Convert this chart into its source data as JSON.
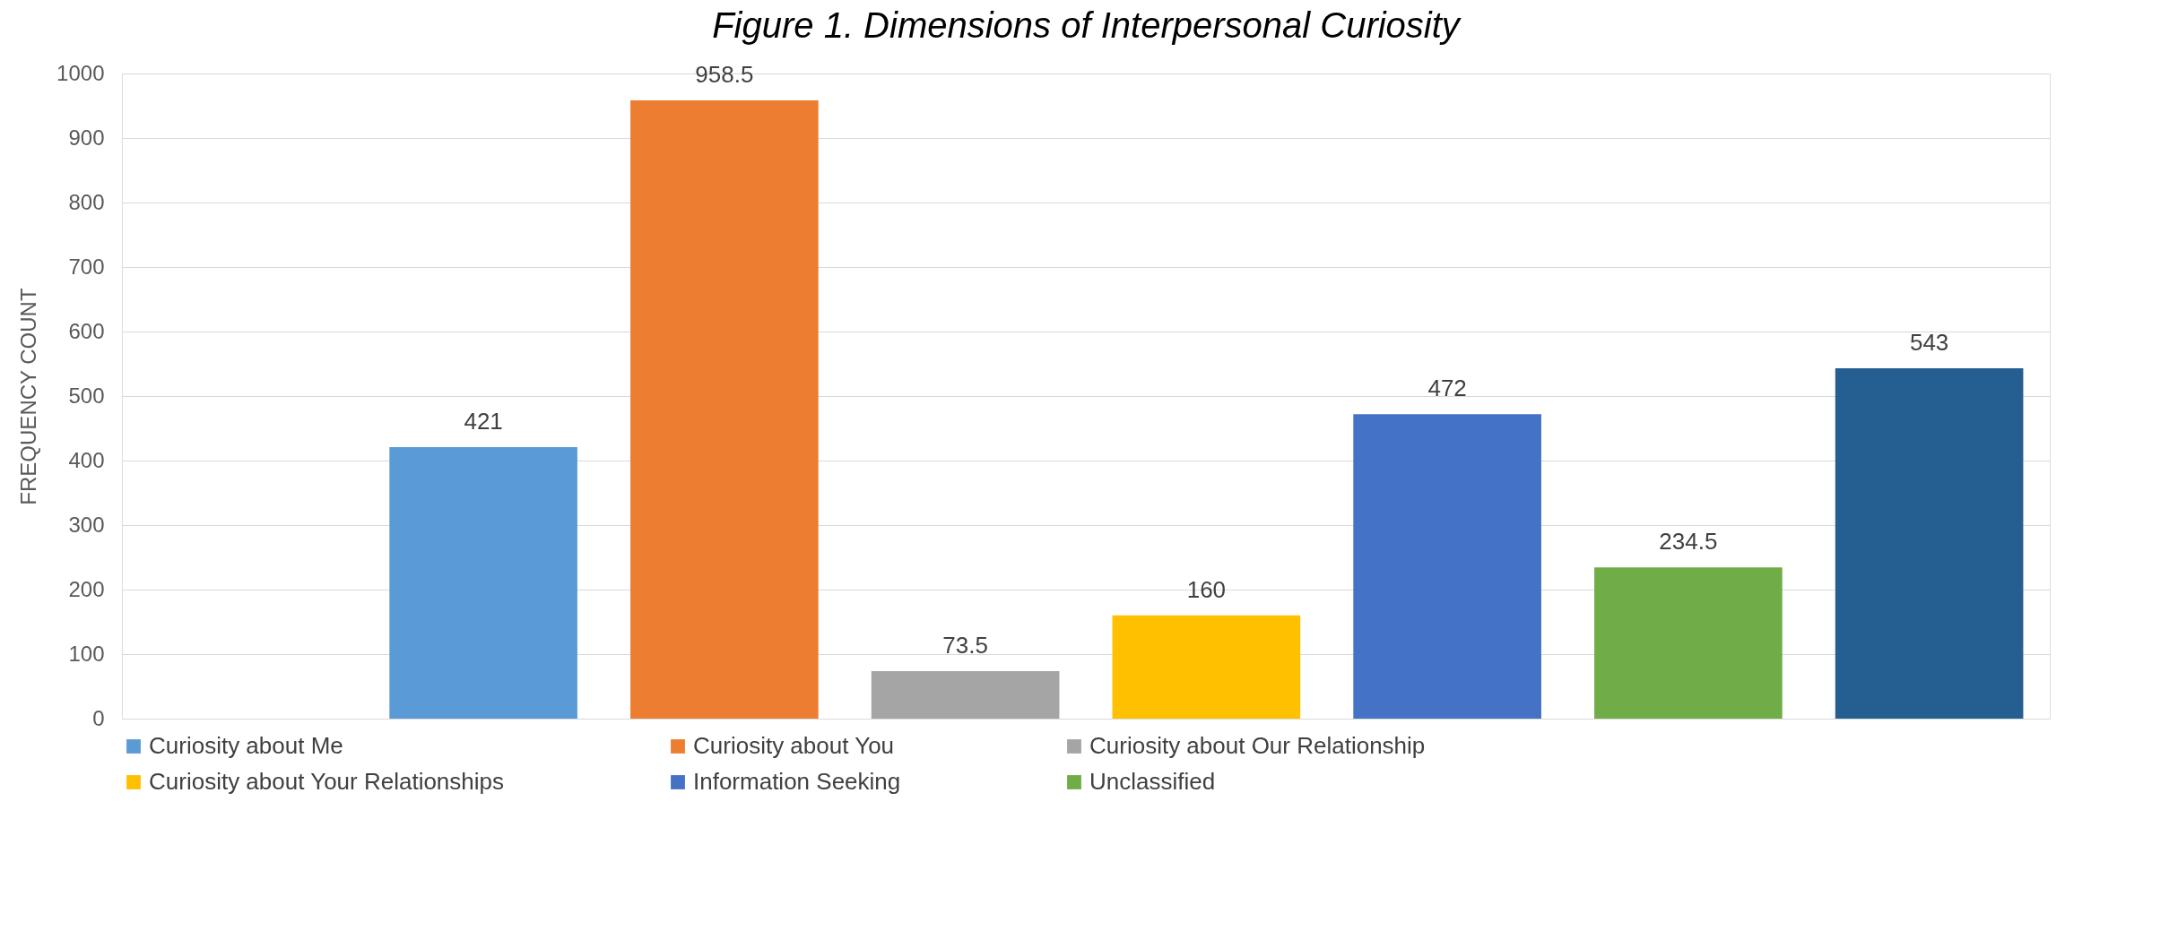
{
  "chart_data": {
    "type": "bar",
    "title": "Figure 1. Dimensions of Interpersonal Curiosity",
    "ylabel": "FREQUENCY COUNT",
    "categories": [
      null,
      null,
      null,
      null,
      null,
      null,
      null,
      null
    ],
    "series": [
      {
        "name": "Curiosity about Me",
        "color": "#5b9bd5",
        "values": [
          null,
          421,
          null,
          null,
          null,
          null,
          null,
          null
        ]
      },
      {
        "name": "Curiosity about You",
        "color": "#ed7d31",
        "values": [
          null,
          null,
          958.5,
          null,
          null,
          null,
          null,
          null
        ]
      },
      {
        "name": "Curiosity about Our Relationship",
        "color": "#a5a5a5",
        "values": [
          null,
          null,
          null,
          73.5,
          null,
          null,
          null,
          null
        ]
      },
      {
        "name": "Curiosity about Your Relationships",
        "color": "#ffc000",
        "values": [
          null,
          null,
          null,
          null,
          160,
          null,
          null,
          null
        ]
      },
      {
        "name": "Information Seeking",
        "color": "#4472c4",
        "values": [
          null,
          null,
          null,
          null,
          null,
          472,
          null,
          null
        ]
      },
      {
        "name": "Unclassified",
        "color": "#70ad47",
        "values": [
          null,
          null,
          null,
          null,
          null,
          null,
          234.5,
          null
        ]
      },
      {
        "color": "#255e91",
        "values": [
          null,
          null,
          null,
          null,
          null,
          null,
          null,
          543
        ]
      }
    ],
    "ylim": [
      0,
      1000
    ],
    "yticks": [
      0,
      100,
      200,
      300,
      400,
      500,
      600,
      700,
      800,
      900,
      1000
    ],
    "grid": "y",
    "legend": "bottom",
    "data_labels": true
  }
}
